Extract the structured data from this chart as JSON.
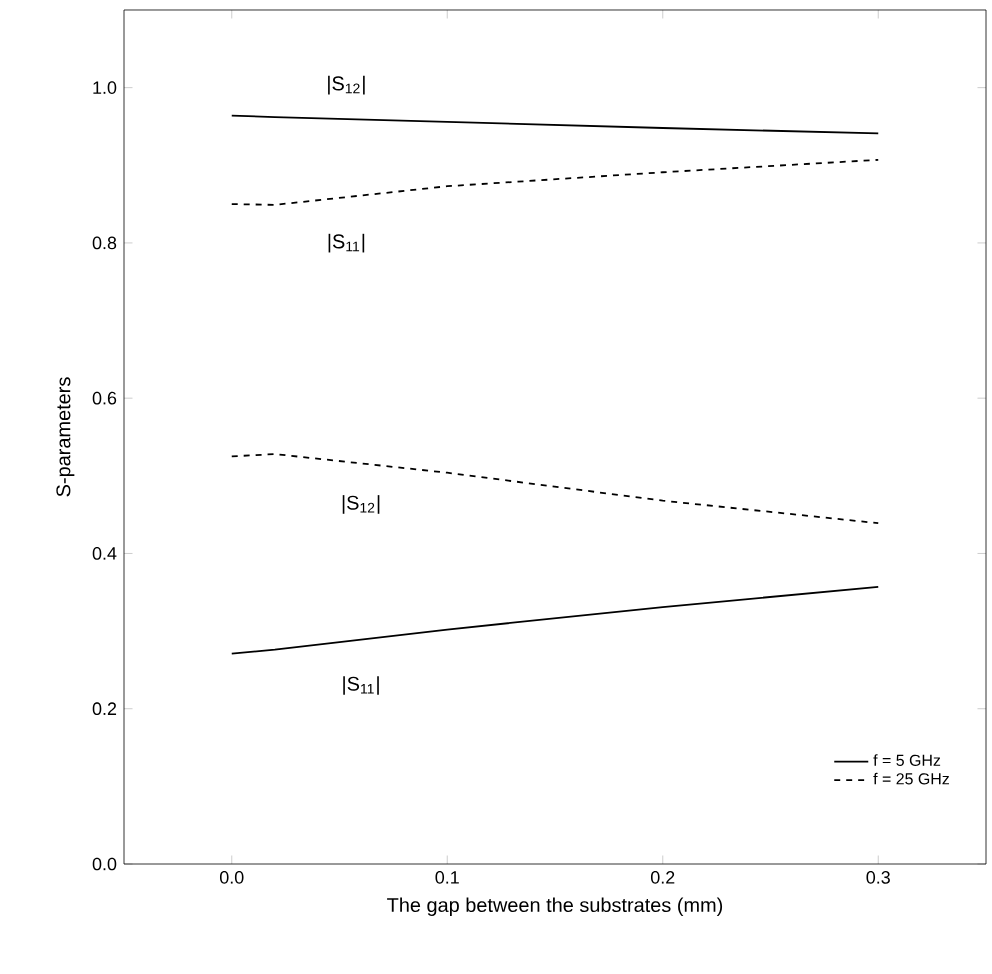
{
  "chart_data": {
    "type": "line",
    "xlabel": "The gap between the substrates (mm)",
    "ylabel": "S-parameters",
    "x": [
      0.0,
      0.02,
      0.1,
      0.2,
      0.3
    ],
    "series": [
      {
        "name": "f = 5 GHz",
        "color": "#000000",
        "line_style": "solid",
        "values": [
          0.964,
          0.962,
          0.956,
          0.948,
          0.941
        ]
      },
      {
        "name": "f = 25 GHz",
        "color": "#000000",
        "line_style": "dashed",
        "values": [
          0.85,
          0.849,
          0.873,
          0.891,
          0.907
        ]
      },
      {
        "color": "#000000",
        "line_style": "dashed",
        "values": [
          0.525,
          0.528,
          0.504,
          0.468,
          0.439
        ]
      },
      {
        "color": "#000000",
        "line_style": "solid",
        "values": [
          0.271,
          0.276,
          0.302,
          0.331,
          0.357
        ]
      }
    ],
    "xlim": [
      -0.05,
      0.35
    ],
    "ylim": [
      0.0,
      1.1
    ],
    "xticks": [
      {
        "value": 0.0,
        "label": "0.0"
      },
      {
        "value": 0.1,
        "label": "0.1"
      },
      {
        "value": 0.2,
        "label": "0.2"
      },
      {
        "value": 0.3,
        "label": "0.3"
      }
    ],
    "yticks": [
      {
        "value": 0.0,
        "label": "0.0"
      },
      {
        "value": 0.2,
        "label": "0.2"
      },
      {
        "value": 0.4,
        "label": "0.4"
      },
      {
        "value": 0.6,
        "label": "0.6"
      },
      {
        "value": 0.8,
        "label": "0.8"
      },
      {
        "value": 1.0,
        "label": "1.0"
      }
    ],
    "annotations": [
      "|S$_{12}$|",
      "|S$_{11}$|",
      "|S$_{12}$|",
      "|S$_{11}$|"
    ],
    "legend": "bottom right",
    "marker": "none",
    "grid": false
  }
}
